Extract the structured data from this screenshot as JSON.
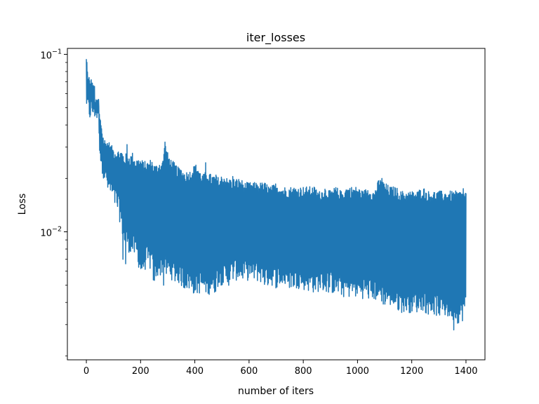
{
  "chart_data": {
    "type": "line",
    "title": "iter_losses",
    "xlabel": "number of iters",
    "ylabel": "Loss",
    "xlim": [
      -70,
      1470
    ],
    "ylim": [
      0.0019,
      0.108
    ],
    "yscale": "log",
    "grid": false,
    "legend": "none",
    "x_ticks": [
      {
        "value": 0,
        "label": "0"
      },
      {
        "value": 200,
        "label": "200"
      },
      {
        "value": 400,
        "label": "400"
      },
      {
        "value": 600,
        "label": "600"
      },
      {
        "value": 800,
        "label": "800"
      },
      {
        "value": 1000,
        "label": "1000"
      },
      {
        "value": 1200,
        "label": "1200"
      },
      {
        "value": 1400,
        "label": "1400"
      }
    ],
    "y_ticks": [
      {
        "value": 0.01,
        "label_base": "10",
        "label_exp": "−2"
      },
      {
        "value": 0.1,
        "label_base": "10",
        "label_exp": "−1"
      }
    ],
    "series": [
      {
        "color": "#1f77b4",
        "x": [
          0,
          2,
          5,
          10,
          15,
          20,
          25,
          30,
          35,
          40,
          45,
          50,
          55,
          60,
          70,
          80,
          90,
          100,
          110,
          120,
          130,
          140,
          150,
          160,
          170,
          180,
          190,
          200,
          210,
          220,
          230,
          240,
          250,
          260,
          270,
          280,
          290,
          300,
          310,
          320,
          330,
          340,
          350,
          360,
          370,
          380,
          390,
          400,
          410,
          420,
          430,
          440,
          450,
          460,
          470,
          480,
          490,
          500,
          510,
          520,
          530,
          540,
          550,
          560,
          570,
          580,
          590,
          600,
          620,
          640,
          660,
          680,
          700,
          720,
          740,
          760,
          780,
          800,
          820,
          840,
          860,
          880,
          900,
          920,
          940,
          960,
          980,
          1000,
          1020,
          1040,
          1060,
          1080,
          1100,
          1120,
          1140,
          1160,
          1180,
          1200,
          1220,
          1240,
          1260,
          1280,
          1300,
          1320,
          1340,
          1360,
          1380,
          1400
        ],
        "upper": [
          0.094,
          0.095,
          0.078,
          0.074,
          0.072,
          0.074,
          0.068,
          0.065,
          0.055,
          0.058,
          0.055,
          0.045,
          0.043,
          0.036,
          0.033,
          0.033,
          0.031,
          0.03,
          0.029,
          0.029,
          0.029,
          0.027,
          0.028,
          0.027,
          0.028,
          0.026,
          0.026,
          0.026,
          0.025,
          0.025,
          0.025,
          0.026,
          0.024,
          0.024,
          0.025,
          0.025,
          0.032,
          0.028,
          0.026,
          0.025,
          0.024,
          0.023,
          0.023,
          0.022,
          0.022,
          0.022,
          0.023,
          0.024,
          0.024,
          0.022,
          0.021,
          0.022,
          0.022,
          0.021,
          0.021,
          0.021,
          0.02,
          0.021,
          0.021,
          0.02,
          0.02,
          0.02,
          0.02,
          0.02,
          0.02,
          0.019,
          0.019,
          0.019,
          0.019,
          0.019,
          0.019,
          0.018,
          0.019,
          0.018,
          0.018,
          0.018,
          0.018,
          0.018,
          0.018,
          0.018,
          0.017,
          0.018,
          0.017,
          0.018,
          0.017,
          0.018,
          0.018,
          0.018,
          0.017,
          0.018,
          0.017,
          0.02,
          0.019,
          0.018,
          0.018,
          0.017,
          0.017,
          0.017,
          0.017,
          0.018,
          0.017,
          0.017,
          0.017,
          0.017,
          0.017,
          0.017,
          0.017,
          0.017
        ],
        "lower": [
          0.052,
          0.044,
          0.045,
          0.041,
          0.042,
          0.043,
          0.042,
          0.043,
          0.04,
          0.041,
          0.043,
          0.025,
          0.022,
          0.021,
          0.018,
          0.016,
          0.015,
          0.014,
          0.013,
          0.012,
          0.01,
          0.008,
          0.008,
          0.0075,
          0.0073,
          0.007,
          0.0066,
          0.0055,
          0.0058,
          0.0062,
          0.0061,
          0.006,
          0.0048,
          0.0055,
          0.0056,
          0.0057,
          0.0055,
          0.0054,
          0.0055,
          0.0052,
          0.005,
          0.0051,
          0.0049,
          0.0047,
          0.0047,
          0.0046,
          0.0045,
          0.0044,
          0.0044,
          0.0045,
          0.0044,
          0.0044,
          0.0044,
          0.0045,
          0.0043,
          0.0047,
          0.005,
          0.005,
          0.0049,
          0.0049,
          0.005,
          0.0052,
          0.0053,
          0.0053,
          0.0052,
          0.0053,
          0.0053,
          0.0053,
          0.0052,
          0.0052,
          0.0048,
          0.005,
          0.0048,
          0.0049,
          0.0048,
          0.0047,
          0.0048,
          0.0047,
          0.0046,
          0.0045,
          0.0046,
          0.0045,
          0.0045,
          0.0044,
          0.0043,
          0.0042,
          0.0043,
          0.0042,
          0.0042,
          0.0041,
          0.0041,
          0.004,
          0.0038,
          0.0038,
          0.0036,
          0.0035,
          0.0035,
          0.0035,
          0.0035,
          0.0036,
          0.0034,
          0.0034,
          0.0033,
          0.0033,
          0.0032,
          0.0031,
          0.003,
          0.0034
        ],
        "dips": [
          [
            70,
            0.0155
          ],
          [
            135,
            0.007
          ],
          [
            145,
            0.0066
          ],
          [
            200,
            0.0047
          ],
          [
            285,
            0.005
          ],
          [
            322,
            0.0044
          ],
          [
            390,
            0.0052
          ],
          [
            420,
            0.0042
          ],
          [
            450,
            0.0047
          ],
          [
            490,
            0.004
          ],
          [
            560,
            0.005
          ],
          [
            640,
            0.0047
          ],
          [
            690,
            0.004
          ],
          [
            760,
            0.0043
          ],
          [
            800,
            0.0042
          ],
          [
            900,
            0.0037
          ],
          [
            960,
            0.0038
          ],
          [
            1000,
            0.0044
          ],
          [
            1060,
            0.0039
          ],
          [
            1090,
            0.0052
          ],
          [
            1120,
            0.0034
          ],
          [
            1160,
            0.004
          ],
          [
            1200,
            0.0037
          ],
          [
            1250,
            0.0034
          ],
          [
            1280,
            0.0032
          ],
          [
            1330,
            0.003
          ],
          [
            1355,
            0.0028
          ],
          [
            1368,
            0.0024
          ],
          [
            1400,
            0.0035
          ]
        ],
        "spikes": [
          [
            0,
            0.094
          ],
          [
            10,
            0.074
          ],
          [
            30,
            0.066
          ],
          [
            55,
            0.043
          ],
          [
            150,
            0.031
          ],
          [
            290,
            0.032
          ],
          [
            440,
            0.0245
          ],
          [
            540,
            0.0205
          ],
          [
            1090,
            0.02
          ],
          [
            1355,
            0.018
          ],
          [
            1390,
            0.0175
          ]
        ]
      }
    ]
  }
}
